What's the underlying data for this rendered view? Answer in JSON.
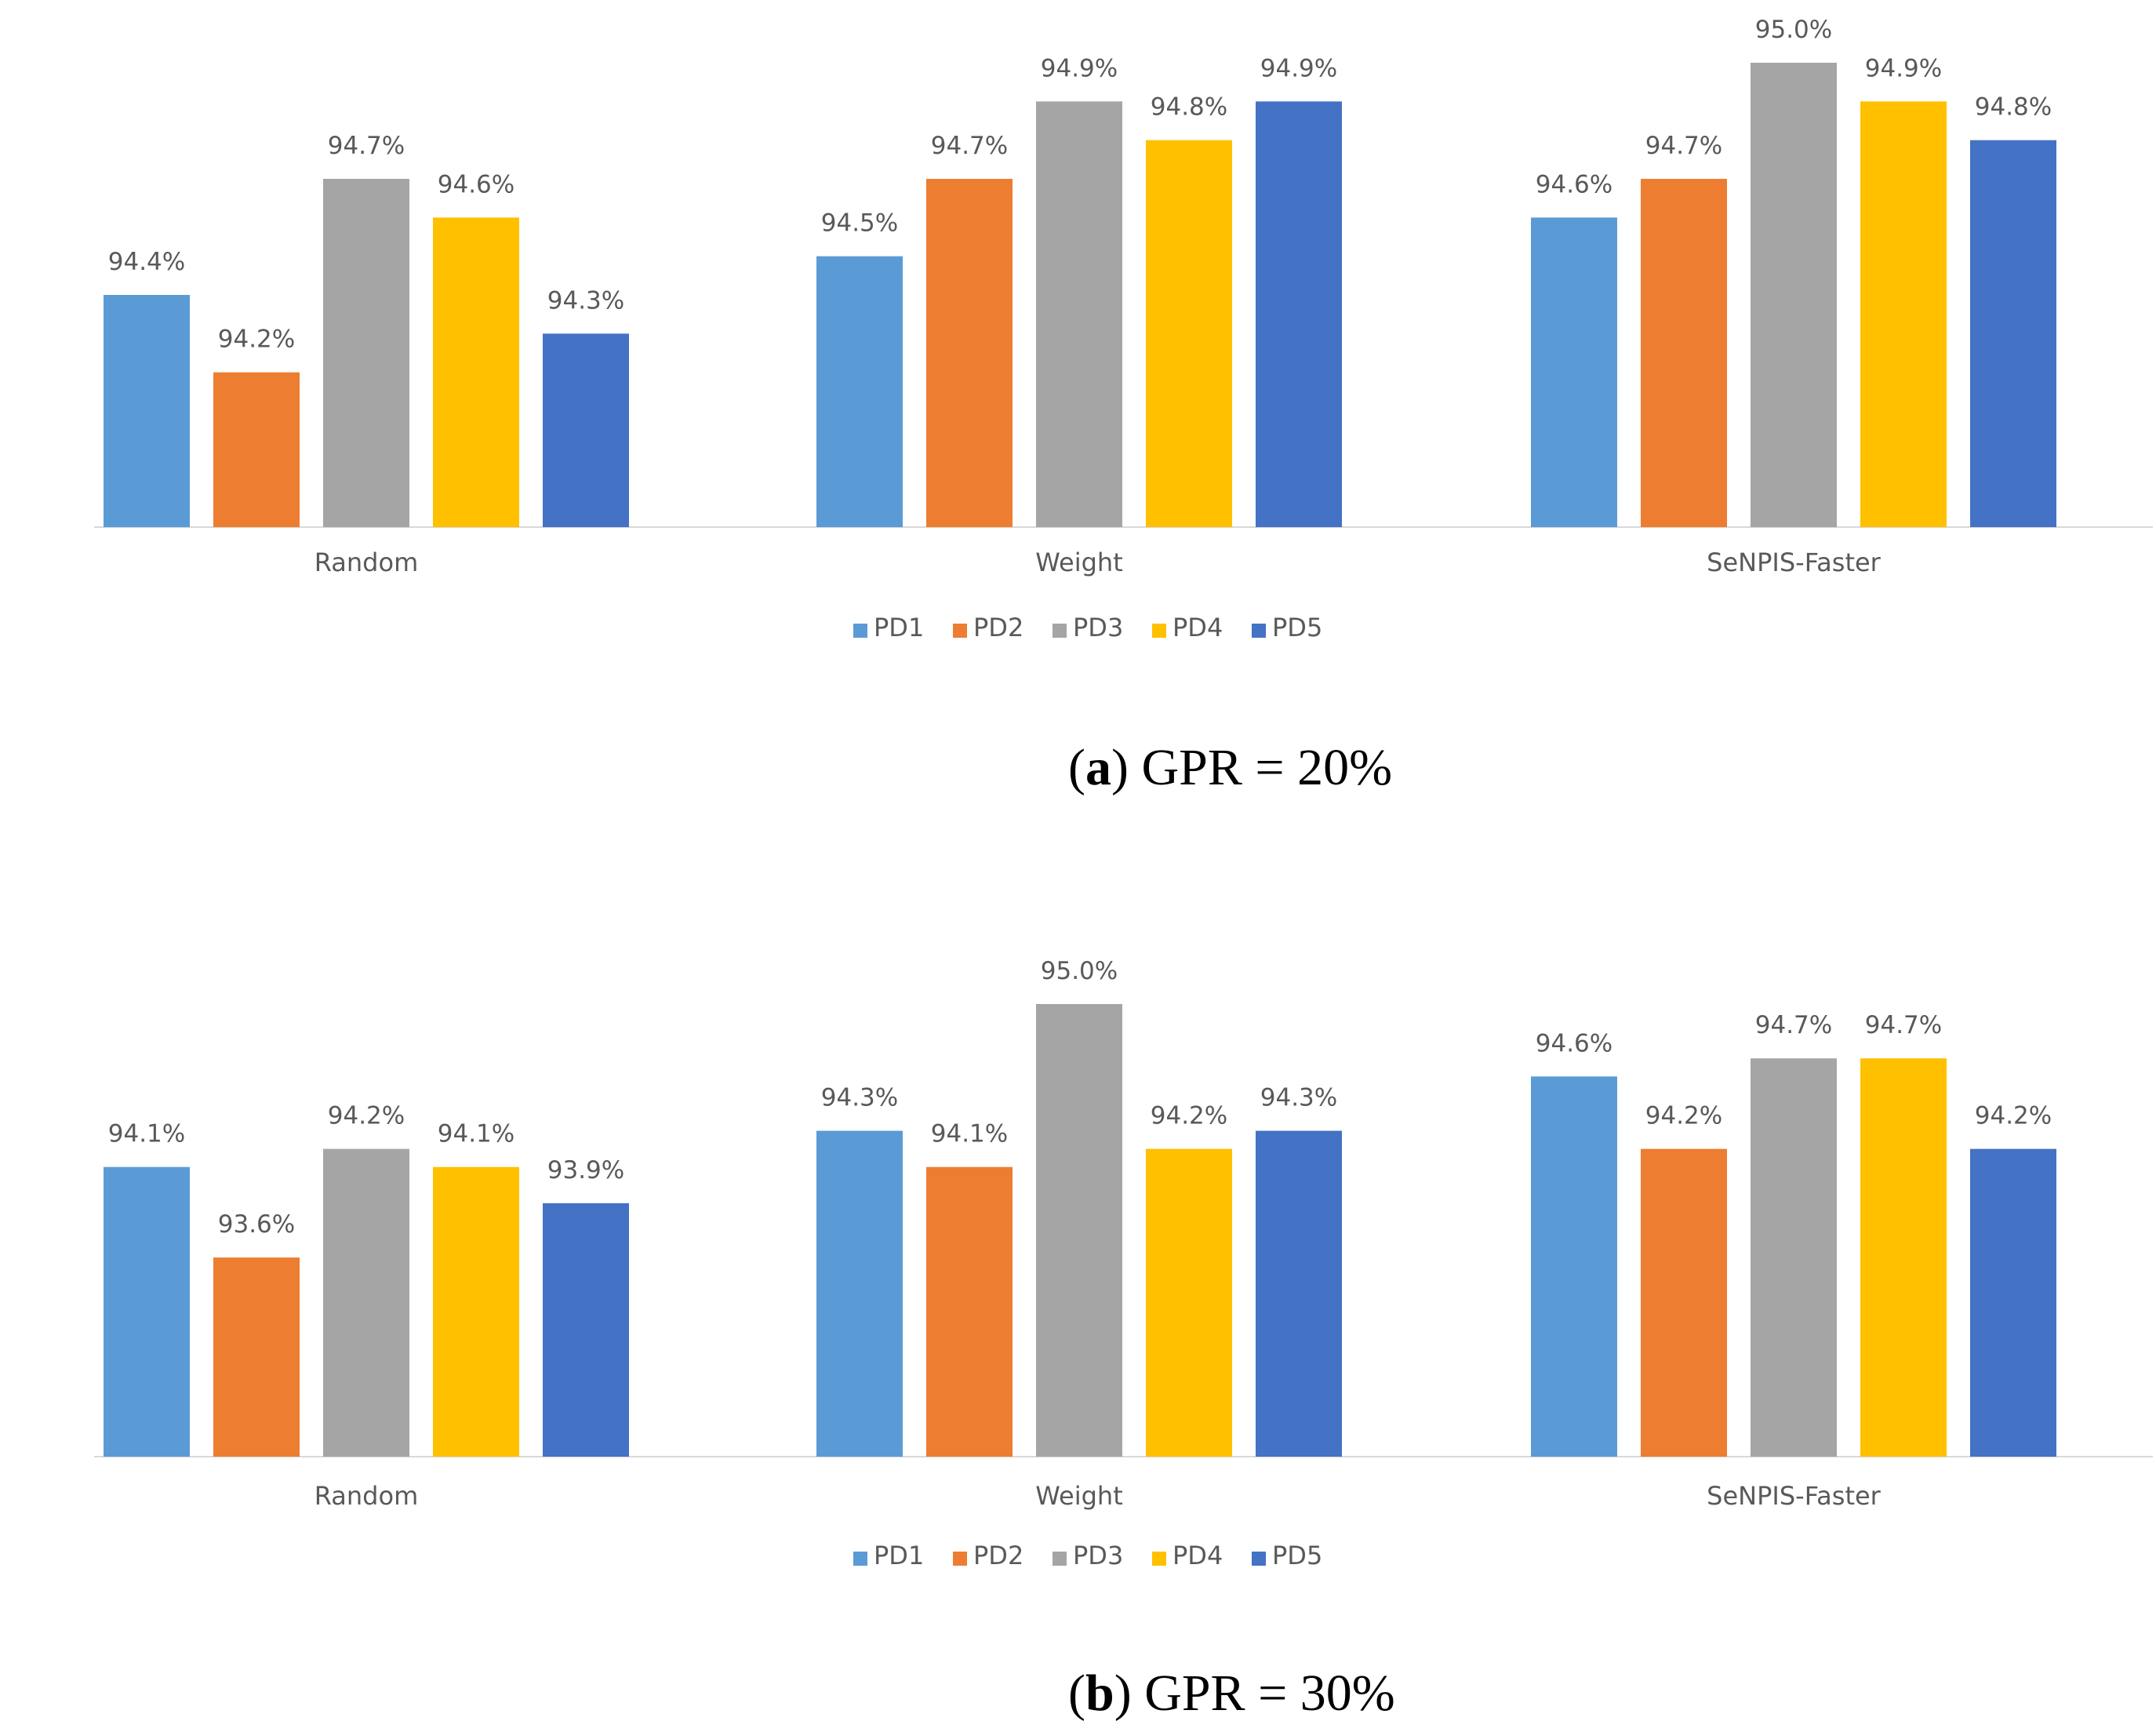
{
  "series_colors": {
    "PD1": "#5B9BD5",
    "PD2": "#ED7D31",
    "PD3": "#A5A5A5",
    "PD4": "#FFC000",
    "PD5": "#4472C4"
  },
  "chart_data": [
    {
      "type": "bar",
      "caption": {
        "letter": "a",
        "text": "GPR = 20%"
      },
      "categories": [
        "Random",
        "Weight",
        "SeNPIS-Faster"
      ],
      "series": [
        {
          "name": "PD1",
          "values": [
            94.4,
            94.5,
            94.6
          ],
          "labels": [
            "94.4%",
            "94.5%",
            "94.6%"
          ]
        },
        {
          "name": "PD2",
          "values": [
            94.2,
            94.7,
            94.7
          ],
          "labels": [
            "94.2%",
            "94.7%",
            "94.7%"
          ]
        },
        {
          "name": "PD3",
          "values": [
            94.7,
            94.9,
            95.0
          ],
          "labels": [
            "94.7%",
            "94.9%",
            "95.0%"
          ]
        },
        {
          "name": "PD4",
          "values": [
            94.6,
            94.8,
            94.9
          ],
          "labels": [
            "94.6%",
            "94.8%",
            "94.9%"
          ]
        },
        {
          "name": "PD5",
          "values": [
            94.3,
            94.9,
            94.8
          ],
          "labels": [
            "94.3%",
            "94.9%",
            "94.8%"
          ]
        }
      ],
      "ylim": [
        93.8,
        95.0
      ],
      "legend_position": "bottom",
      "grid": false
    },
    {
      "type": "bar",
      "caption": {
        "letter": "b",
        "text": "GPR = 30%"
      },
      "categories": [
        "Random",
        "Weight",
        "SeNPIS-Faster"
      ],
      "series": [
        {
          "name": "PD1",
          "values": [
            94.1,
            94.3,
            94.6
          ],
          "labels": [
            "94.1%",
            "94.3%",
            "94.6%"
          ]
        },
        {
          "name": "PD2",
          "values": [
            93.6,
            94.1,
            94.2
          ],
          "labels": [
            "93.6%",
            "94.1%",
            "94.2%"
          ]
        },
        {
          "name": "PD3",
          "values": [
            94.2,
            95.0,
            94.7
          ],
          "labels": [
            "94.2%",
            "95.0%",
            "94.7%"
          ]
        },
        {
          "name": "PD4",
          "values": [
            94.1,
            94.2,
            94.7
          ],
          "labels": [
            "94.1%",
            "94.2%",
            "94.7%"
          ]
        },
        {
          "name": "PD5",
          "values": [
            93.9,
            94.3,
            94.2
          ],
          "labels": [
            "93.9%",
            "94.3%",
            "94.2%"
          ]
        }
      ],
      "ylim": [
        92.5,
        95.0
      ],
      "legend_position": "bottom",
      "grid": false
    }
  ]
}
